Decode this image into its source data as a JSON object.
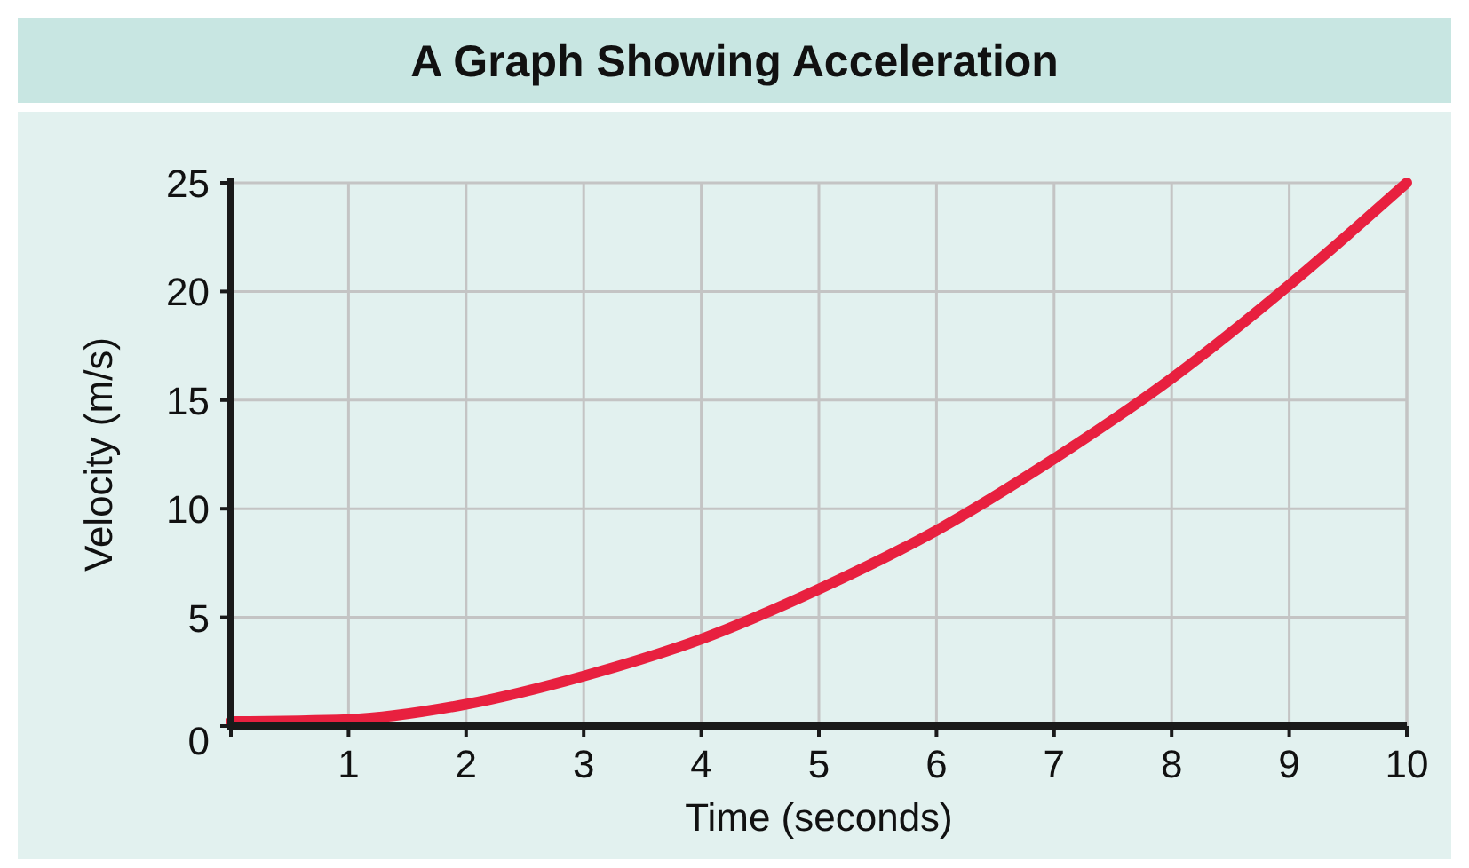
{
  "chart_data": {
    "type": "line",
    "title": "A Graph Showing Acceleration",
    "xlabel": "Time (seconds)",
    "ylabel": "Velocity (m/s)",
    "x": [
      0,
      1,
      2,
      3,
      4,
      5,
      6,
      7,
      8,
      9,
      10
    ],
    "series": [
      {
        "color": "#e8203f",
        "values": [
          0.2,
          0.3,
          1,
          2.3,
          4,
          6.3,
          9,
          12.3,
          16,
          20.3,
          25
        ]
      }
    ],
    "xlim": [
      0,
      10
    ],
    "xticks": [
      {
        "value": 0,
        "label": null
      },
      1,
      2,
      3,
      4,
      5,
      6,
      7,
      8,
      9,
      10
    ],
    "ylim": [
      0,
      25
    ],
    "yticks": [
      0,
      5,
      10,
      15,
      20,
      25
    ],
    "grid": true,
    "marker": "none",
    "line_style": "solid"
  }
}
